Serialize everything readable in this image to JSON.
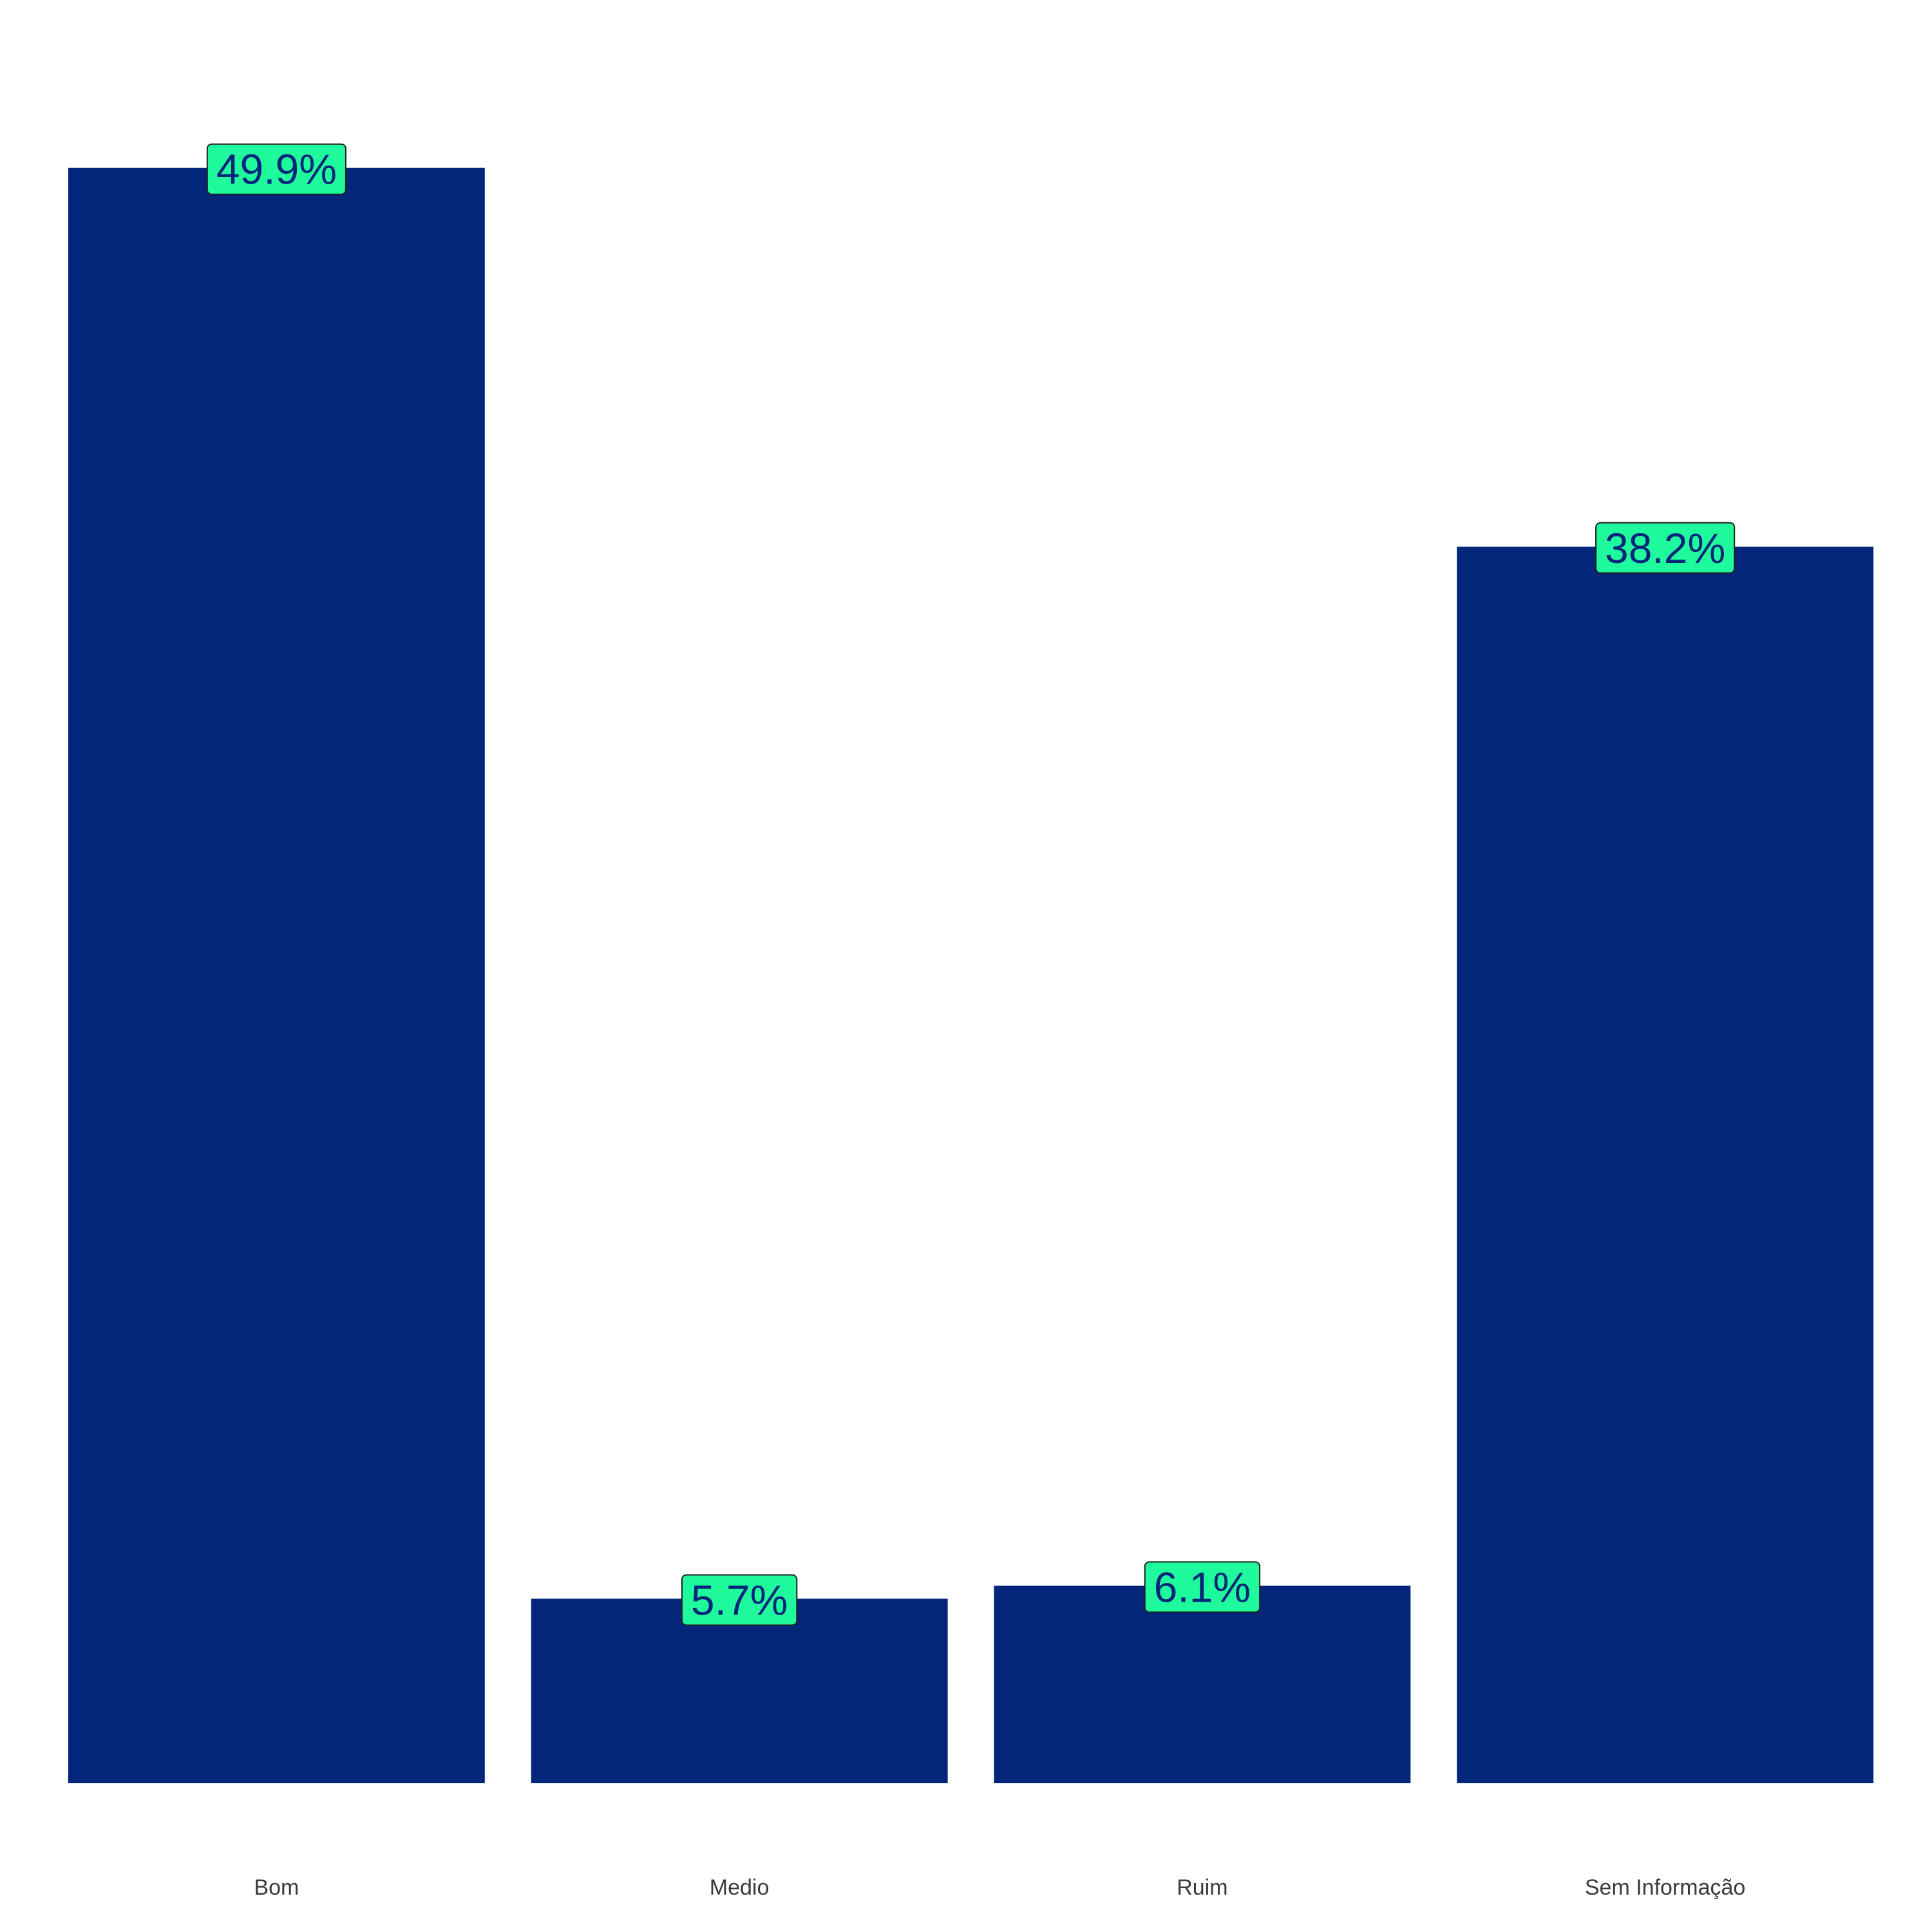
{
  "colors": {
    "bar": "#03267b",
    "label_fill": "#1ffb9c",
    "label_text": "#03267b",
    "label_border": "#1d1d1d",
    "tick_text": "#3a3a3a",
    "background": "#ffffff"
  },
  "chart_data": {
    "type": "bar",
    "title": "",
    "xlabel": "",
    "ylabel": "",
    "categories": [
      "Bom",
      "Medio",
      "Ruim",
      "Sem Informação"
    ],
    "values": [
      49.9,
      5.7,
      6.1,
      38.2
    ],
    "data_labels": [
      "49.9%",
      "5.7%",
      "6.1%",
      "38.2%"
    ],
    "ylim": [
      0,
      52.4
    ],
    "grid": false,
    "legend": "none",
    "y_axis_visible": false
  }
}
